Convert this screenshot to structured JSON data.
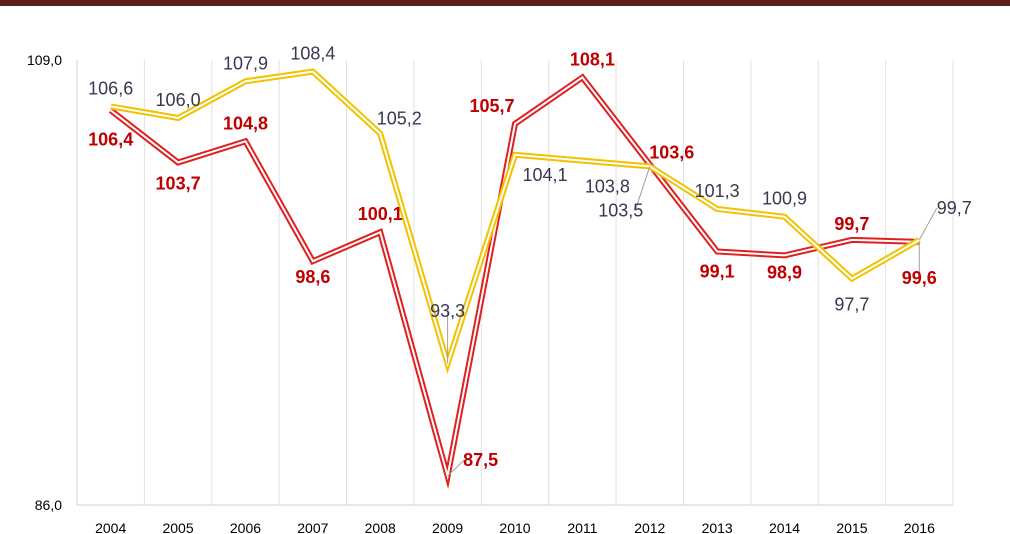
{
  "chart_data": {
    "type": "line",
    "x": [
      "2004",
      "2005",
      "2006",
      "2007",
      "2008",
      "2009",
      "2010",
      "2011",
      "2012",
      "2013",
      "2014",
      "2015",
      "2016"
    ],
    "ylim": [
      86.0,
      109.0
    ],
    "y_tick_labels": [
      "109,0",
      "86,0"
    ],
    "grid": "vertical",
    "series": [
      {
        "name": "series-red",
        "color": "#e02020",
        "values": [
          106.4,
          103.7,
          104.8,
          98.6,
          100.1,
          87.5,
          105.7,
          108.1,
          103.6,
          99.1,
          98.9,
          99.7,
          99.6
        ],
        "labels": [
          "106,4",
          "103,7",
          "104,8",
          "98,6",
          "100,1",
          "87,5",
          "105,7",
          "108,1",
          "103,6",
          "99,1",
          "98,9",
          "99,7",
          "99,6"
        ]
      },
      {
        "name": "series-yellow",
        "color": "#f2c200",
        "values": [
          106.6,
          106.0,
          107.9,
          108.4,
          105.2,
          93.3,
          104.1,
          103.8,
          103.5,
          101.3,
          100.9,
          97.7,
          99.7
        ],
        "labels": [
          "106,6",
          "106,0",
          "107,9",
          "108,4",
          "105,2",
          "93,3",
          "104,1",
          "103,8",
          "103,5",
          "101,3",
          "100,9",
          "97,7",
          "99,7"
        ]
      }
    ]
  }
}
